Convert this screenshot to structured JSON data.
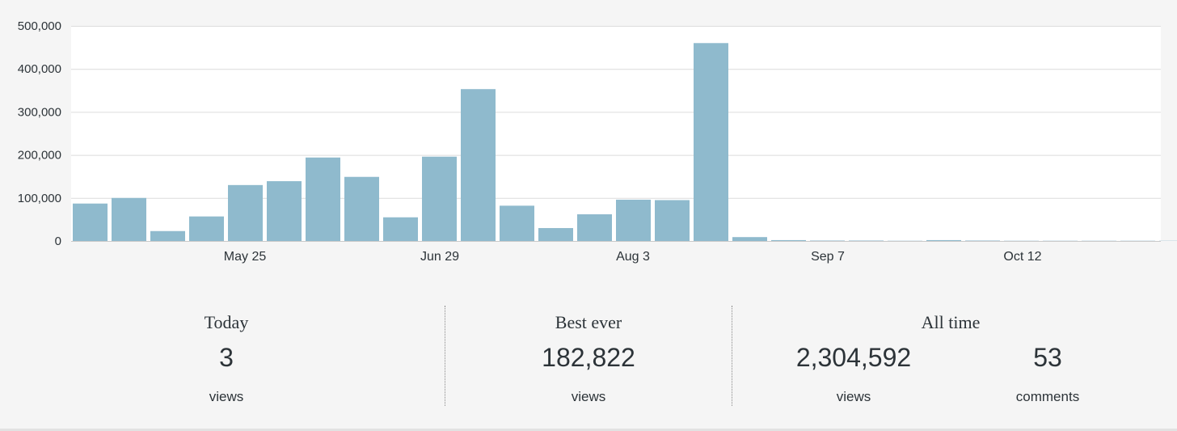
{
  "chart_data": {
    "type": "bar",
    "y_ticks": [
      "500,000",
      "400,000",
      "300,000",
      "200,000",
      "100,000",
      "0"
    ],
    "y_tick_values": [
      500000,
      400000,
      300000,
      200000,
      100000,
      0
    ],
    "ylim": [
      0,
      500000
    ],
    "x_tick_labels": [
      "May 25",
      "Jun 29",
      "Aug 3",
      "Sep 7",
      "Oct 12"
    ],
    "grid": true,
    "bar_color": "#8fbacd",
    "values": [
      87000,
      100000,
      23000,
      57000,
      130000,
      139000,
      194000,
      149000,
      55000,
      196000,
      353000,
      82000,
      30000,
      62000,
      96000,
      95000,
      460000,
      9000,
      2000,
      1000,
      1000,
      500,
      2000,
      1000,
      500,
      500,
      500,
      500,
      500,
      500
    ]
  },
  "stats": {
    "today": {
      "title": "Today",
      "value": "3",
      "unit": "views"
    },
    "best_ever": {
      "title": "Best ever",
      "value": "182,822",
      "unit": "views"
    },
    "all_time": {
      "title": "All time",
      "views_value": "2,304,592",
      "views_unit": "views",
      "comments_value": "53",
      "comments_unit": "comments"
    }
  }
}
